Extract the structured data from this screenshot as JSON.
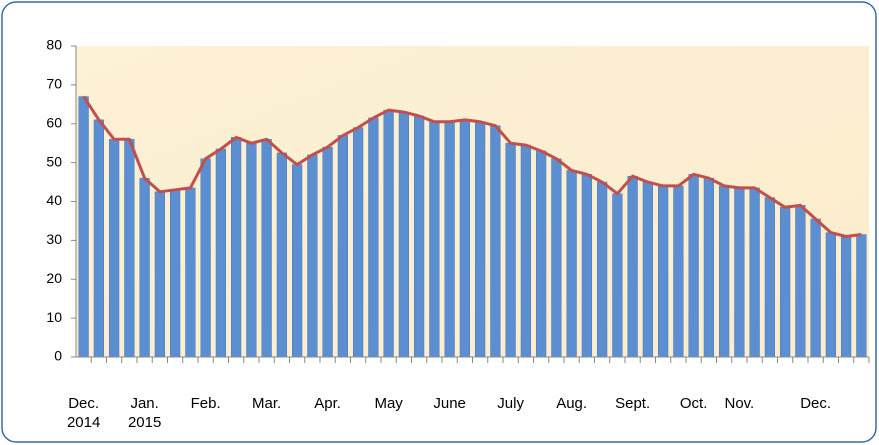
{
  "chart_data": {
    "type": "bar_line",
    "categories": [
      "Dec. 2014",
      null,
      null,
      null,
      "Jan. 2015",
      null,
      null,
      null,
      "Feb.",
      null,
      null,
      null,
      "Mar.",
      null,
      null,
      null,
      "Apr.",
      null,
      null,
      null,
      "May",
      null,
      null,
      null,
      "June",
      null,
      null,
      null,
      "July",
      null,
      null,
      null,
      "Aug.",
      null,
      null,
      null,
      "Sept.",
      null,
      null,
      null,
      "Oct.",
      null,
      null,
      "Nov.",
      null,
      null,
      null,
      null,
      "Dec.",
      null,
      null,
      null
    ],
    "values": [
      67,
      61,
      56,
      56,
      46,
      42.5,
      43,
      43.5,
      51,
      53.5,
      56.5,
      55,
      56,
      52.5,
      49.5,
      52,
      54,
      57,
      59,
      61.5,
      63.5,
      63,
      62,
      60.5,
      60.5,
      61,
      60.5,
      59.5,
      55,
      54.5,
      53,
      51,
      48,
      47,
      45,
      42,
      46.5,
      45,
      44,
      44,
      47,
      46,
      44,
      43.5,
      43.5,
      41,
      38.5,
      39,
      35.5,
      32,
      31,
      31.5
    ],
    "bar_color": "#5b8fd1",
    "line_color": "#c0504d",
    "ylim": [
      0,
      80
    ],
    "yticks": [
      0,
      10,
      20,
      30,
      40,
      50,
      60,
      70,
      80
    ],
    "grid": false
  }
}
